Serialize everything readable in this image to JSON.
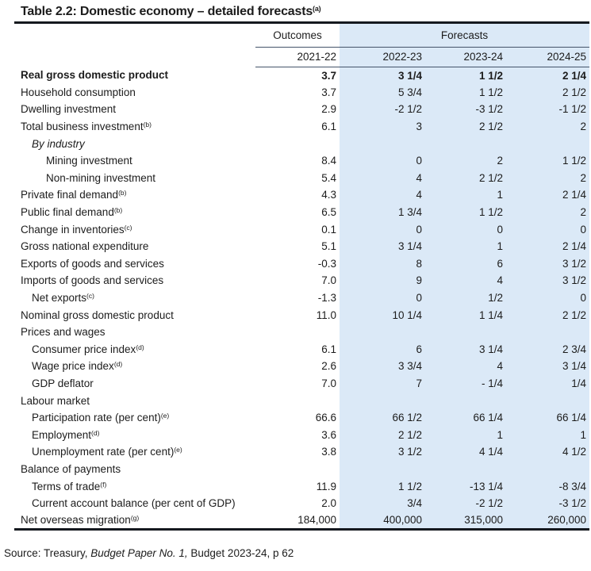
{
  "title": {
    "text": "Table 2.2: Domestic economy – detailed forecasts",
    "superscript": "(a)"
  },
  "table": {
    "header": {
      "outcomes_label": "Outcomes",
      "forecasts_label": "Forecasts",
      "years": [
        "2021-22",
        "2022-23",
        "2023-24",
        "2024-25"
      ]
    },
    "rows": [
      {
        "label": "Real gross domestic product",
        "sup": "",
        "indent": 0,
        "bold": true,
        "italic": false,
        "values": [
          "3.7",
          "3 1/4",
          "1 1/2",
          "2 1/4"
        ]
      },
      {
        "label": "Household consumption",
        "sup": "",
        "indent": 0,
        "bold": false,
        "italic": false,
        "values": [
          "3.7",
          "5 3/4",
          "1 1/2",
          "2 1/2"
        ]
      },
      {
        "label": "Dwelling investment",
        "sup": "",
        "indent": 0,
        "bold": false,
        "italic": false,
        "values": [
          "2.9",
          "-2 1/2",
          "-3 1/2",
          "-1 1/2"
        ]
      },
      {
        "label": "Total business investment",
        "sup": "(b)",
        "indent": 0,
        "bold": false,
        "italic": false,
        "values": [
          "6.1",
          "3",
          "2 1/2",
          "2"
        ]
      },
      {
        "label": "By industry",
        "sup": "",
        "indent": 1,
        "bold": false,
        "italic": true,
        "values": [
          "",
          "",
          "",
          ""
        ]
      },
      {
        "label": "Mining investment",
        "sup": "",
        "indent": 2,
        "bold": false,
        "italic": false,
        "values": [
          "8.4",
          "0",
          "2",
          "1 1/2"
        ]
      },
      {
        "label": "Non-mining investment",
        "sup": "",
        "indent": 2,
        "bold": false,
        "italic": false,
        "values": [
          "5.4",
          "4",
          "2 1/2",
          "2"
        ]
      },
      {
        "label": "Private final demand",
        "sup": "(b)",
        "indent": 0,
        "bold": false,
        "italic": false,
        "values": [
          "4.3",
          "4",
          "1",
          "2 1/4"
        ]
      },
      {
        "label": "Public final demand",
        "sup": "(b)",
        "indent": 0,
        "bold": false,
        "italic": false,
        "values": [
          "6.5",
          "1 3/4",
          "1 1/2",
          "2"
        ]
      },
      {
        "label": "Change in inventories",
        "sup": "(c)",
        "indent": 0,
        "bold": false,
        "italic": false,
        "values": [
          "0.1",
          "0",
          "0",
          "0"
        ]
      },
      {
        "label": "Gross national expenditure",
        "sup": "",
        "indent": 0,
        "bold": false,
        "italic": false,
        "values": [
          "5.1",
          "3 1/4",
          "1",
          "2 1/4"
        ]
      },
      {
        "label": "Exports of goods and services",
        "sup": "",
        "indent": 0,
        "bold": false,
        "italic": false,
        "values": [
          "-0.3",
          "8",
          "6",
          "3 1/2"
        ]
      },
      {
        "label": "Imports of goods and services",
        "sup": "",
        "indent": 0,
        "bold": false,
        "italic": false,
        "values": [
          "7.0",
          "9",
          "4",
          "3 1/2"
        ]
      },
      {
        "label": "Net exports",
        "sup": "(c)",
        "indent": 1,
        "bold": false,
        "italic": false,
        "values": [
          "-1.3",
          "0",
          "1/2",
          "0"
        ]
      },
      {
        "label": "Nominal gross domestic product",
        "sup": "",
        "indent": 0,
        "bold": false,
        "italic": false,
        "values": [
          "11.0",
          "10 1/4",
          "1 1/4",
          "2 1/2"
        ]
      },
      {
        "label": "Prices and wages",
        "sup": "",
        "indent": 0,
        "bold": false,
        "italic": false,
        "values": [
          "",
          "",
          "",
          ""
        ]
      },
      {
        "label": "Consumer price index",
        "sup": "(d)",
        "indent": 1,
        "bold": false,
        "italic": false,
        "values": [
          "6.1",
          "6",
          "3 1/4",
          "2 3/4"
        ]
      },
      {
        "label": "Wage price index",
        "sup": "(d)",
        "indent": 1,
        "bold": false,
        "italic": false,
        "values": [
          "2.6",
          "3 3/4",
          "4",
          "3 1/4"
        ]
      },
      {
        "label": "GDP deflator",
        "sup": "",
        "indent": 1,
        "bold": false,
        "italic": false,
        "values": [
          "7.0",
          "7",
          "- 1/4",
          "1/4"
        ]
      },
      {
        "label": "Labour market",
        "sup": "",
        "indent": 0,
        "bold": false,
        "italic": false,
        "values": [
          "",
          "",
          "",
          ""
        ]
      },
      {
        "label": "Participation rate (per cent)",
        "sup": "(e)",
        "indent": 1,
        "bold": false,
        "italic": false,
        "values": [
          "66.6",
          "66 1/2",
          "66 1/4",
          "66 1/4"
        ]
      },
      {
        "label": "Employment",
        "sup": "(d)",
        "indent": 1,
        "bold": false,
        "italic": false,
        "values": [
          "3.6",
          "2 1/2",
          "1",
          "1"
        ]
      },
      {
        "label": "Unemployment rate (per cent)",
        "sup": "(e)",
        "indent": 1,
        "bold": false,
        "italic": false,
        "values": [
          "3.8",
          "3 1/2",
          "4 1/4",
          "4 1/2"
        ]
      },
      {
        "label": "Balance of payments",
        "sup": "",
        "indent": 0,
        "bold": false,
        "italic": false,
        "values": [
          "",
          "",
          "",
          ""
        ]
      },
      {
        "label": "Terms of trade",
        "sup": "(f)",
        "indent": 1,
        "bold": false,
        "italic": false,
        "values": [
          "11.9",
          "1 1/2",
          "-13 1/4",
          "-8 3/4"
        ]
      },
      {
        "label": "Current account balance (per cent of GDP)",
        "sup": "",
        "indent": 1,
        "bold": false,
        "italic": false,
        "values": [
          "2.0",
          "3/4",
          "-2 1/2",
          "-3 1/2"
        ]
      },
      {
        "label": "Net overseas migration",
        "sup": "(g)",
        "indent": 0,
        "bold": false,
        "italic": false,
        "values": [
          "184,000",
          "400,000",
          "315,000",
          "260,000"
        ]
      }
    ]
  },
  "source": {
    "prefix": "Source: Treasury, ",
    "italic": "Budget Paper No. 1,",
    "suffix": " Budget 2023-24, p 62"
  },
  "colors": {
    "forecast_bg": "#dbe9f7",
    "rule_thin": "#44546a",
    "rule_thick": "#15191f"
  }
}
